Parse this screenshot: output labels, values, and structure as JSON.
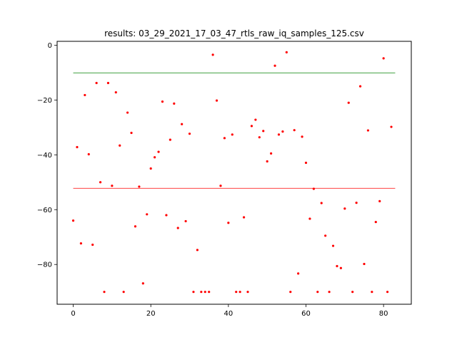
{
  "chart_data": {
    "type": "scatter",
    "title": "results: 03_29_2021_17_03_47_rtls_raw_iq_samples_125.csv",
    "xlabel": "",
    "ylabel": "",
    "xlim": [
      -4.15,
      87.15
    ],
    "ylim": [
      -94.5,
      1.4
    ],
    "grid": false,
    "xticks": [
      0,
      20,
      40,
      60,
      80
    ],
    "yticks": [
      0,
      -20,
      -40,
      -60,
      -80
    ],
    "point_color": "#ff0000",
    "series": [
      {
        "x": [
          0,
          1,
          2,
          3,
          4,
          5,
          6,
          7,
          8,
          9,
          10,
          11,
          12,
          13,
          14,
          15,
          16,
          17,
          18,
          19,
          20,
          21,
          22,
          23,
          24,
          25,
          26,
          27,
          28,
          29,
          30,
          31,
          32,
          33,
          34,
          35,
          36,
          37,
          38,
          39,
          40,
          41,
          42,
          43,
          44,
          45,
          46,
          47,
          48,
          49,
          50,
          51,
          52,
          53,
          54,
          55,
          56,
          57,
          58,
          59,
          60,
          61,
          62,
          63,
          64,
          65,
          66,
          67,
          68,
          69,
          70,
          71,
          72,
          73,
          74,
          75,
          76,
          77,
          78,
          79,
          80,
          81,
          82
        ],
        "y": [
          -64,
          -37.2,
          -72.3,
          -18.2,
          -39.8,
          -72.8,
          -13.8,
          -50,
          -90,
          -13.8,
          -51.3,
          -17.2,
          -36.6,
          -90,
          -24.6,
          -32,
          -66.1,
          -51.6,
          -86.9,
          -61.7,
          -45,
          -40.9,
          -38.9,
          -20.6,
          -62,
          -34.5,
          -21.3,
          -66.7,
          -28.8,
          -64.2,
          -32.3,
          -90,
          -74.7,
          -90,
          -90,
          -90,
          -3.5,
          -20.2,
          -51.3,
          -33.9,
          -64.8,
          -32.6,
          -90,
          -90,
          -62.8,
          -90,
          -29.5,
          -27.2,
          -33.6,
          -31.3,
          -42.4,
          -39.5,
          -7.5,
          -32.6,
          -31.5,
          -2.6,
          -90,
          -31,
          -83.3,
          -33.4,
          -42.9,
          -63.3,
          -52.4,
          -90,
          -57.6,
          -69.5,
          -90,
          -73.2,
          -80.6,
          -81.3,
          -59.6,
          -21,
          -90,
          -57.5,
          -15,
          -79.8,
          -31.1,
          -90,
          -64.5,
          -56.9,
          -4.8,
          -90,
          -29.8
        ]
      }
    ],
    "reference_lines": [
      {
        "y": -10.1,
        "color": "#008000"
      },
      {
        "y": -52.2,
        "color": "#ff0000"
      }
    ],
    "reference_x_range": [
      0,
      83
    ]
  }
}
